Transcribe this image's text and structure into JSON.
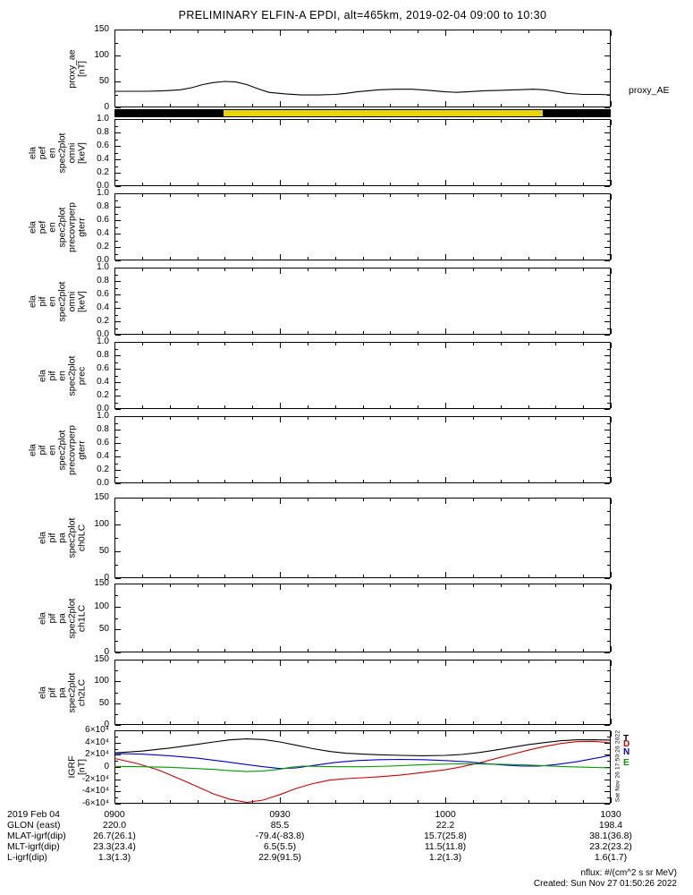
{
  "title": "PRELIMINARY ELFIN-A EPDI, alt=465km, 2019-02-04 09:00 to 10:30",
  "right_label": "proxy_AE",
  "side_timestamp": "Sat Nov 26 17:50:26 2022",
  "footer": {
    "rows": [
      {
        "label": "2019 Feb 04",
        "values": [
          "0900",
          "0930",
          "1000",
          "1030"
        ]
      },
      {
        "label": "GLON (east)",
        "values": [
          "220.0",
          "85.5",
          "22.2",
          "198.4"
        ]
      },
      {
        "label": "MLAT-igrf(dip)",
        "values": [
          "26.7(26.1)",
          "-79.4(-83.8)",
          "15.7(25.8)",
          "38.1(36.8)"
        ]
      },
      {
        "label": "MLT-igrf(dip)",
        "values": [
          "23.3(23.4)",
          "6.5(5.5)",
          "11.5(11.8)",
          "23.2(23.2)"
        ]
      },
      {
        "label": "L-igrf(dip)",
        "values": [
          "1.3(1.3)",
          "22.9(91.5)",
          "1.2(1.3)",
          "1.6(1.7)"
        ]
      }
    ],
    "note_line1": "nflux: #/(cm^2 s sr MeV)",
    "note_line2": "Created: Sun Nov 27 01:50:26 2022"
  },
  "xaxis": {
    "range": [
      0,
      90
    ],
    "major": [
      0,
      30,
      60,
      90
    ],
    "minor_step": 5,
    "labels": [
      "0900",
      "0930",
      "1000",
      "1030"
    ]
  },
  "orbit_bar": {
    "name": "science-zone-bar",
    "segments": [
      {
        "color": "#000000",
        "start": 0.0,
        "end": 0.22
      },
      {
        "color": "#e9d506",
        "start": 0.22,
        "end": 0.863
      },
      {
        "color": "#000000",
        "start": 0.863,
        "end": 1.0
      }
    ]
  },
  "chart_data": [
    {
      "type": "line",
      "name": "proxy-ae-panel",
      "ylabel_lines": [
        "proxy_ae",
        "[nT]"
      ],
      "ylim": [
        0,
        150
      ],
      "yticks": [
        {
          "v": 0,
          "t": "0"
        },
        {
          "v": 50,
          "t": "50"
        },
        {
          "v": 100,
          "t": "100"
        },
        {
          "v": 150,
          "t": "150"
        }
      ],
      "series": [
        {
          "name": "proxy_AE",
          "color": "#000000",
          "x": [
            0,
            3,
            6,
            9,
            12,
            14,
            16,
            18,
            20,
            22,
            24,
            26,
            28,
            31,
            34,
            37,
            40,
            42,
            44,
            46,
            48,
            51,
            54,
            57,
            60,
            62,
            64,
            67,
            70,
            73,
            76,
            78,
            80,
            82,
            85,
            88,
            90
          ],
          "y": [
            31,
            31,
            31,
            32,
            34,
            38,
            44,
            48,
            50,
            49,
            44,
            36,
            29,
            26,
            24,
            24,
            25,
            27,
            30,
            32,
            34,
            35,
            35,
            33,
            30,
            29,
            30,
            32,
            33,
            34,
            35,
            34,
            31,
            27,
            25,
            25,
            24
          ]
        }
      ]
    },
    {
      "type": "spectrogram",
      "name": "ela-pef-en-omni-panel",
      "ylabel_lines": [
        "ela",
        "pef",
        "en",
        "spec2plot",
        "omni",
        "[keV]"
      ],
      "ylim": [
        0,
        1
      ],
      "yticks": [
        {
          "v": 0,
          "t": "0.0"
        },
        {
          "v": 0.2,
          "t": "0.2"
        },
        {
          "v": 0.4,
          "t": "0.4"
        },
        {
          "v": 0.6,
          "t": "0.6"
        },
        {
          "v": 0.8,
          "t": "0.8"
        },
        {
          "v": 1,
          "t": "1.0"
        }
      ],
      "series": []
    },
    {
      "type": "spectrogram",
      "name": "ela-pef-en-precovrperp-gterr-panel",
      "ylabel_lines": [
        "ela",
        "pef",
        "en",
        "spec2plot",
        "precovrperp",
        "gterr"
      ],
      "ylim": [
        0,
        1
      ],
      "yticks": [
        {
          "v": 0,
          "t": "0.0"
        },
        {
          "v": 0.2,
          "t": "0.2"
        },
        {
          "v": 0.4,
          "t": "0.4"
        },
        {
          "v": 0.6,
          "t": "0.6"
        },
        {
          "v": 0.8,
          "t": "0.8"
        },
        {
          "v": 1,
          "t": "1.0"
        }
      ],
      "series": []
    },
    {
      "type": "spectrogram",
      "name": "ela-pif-en-omni-panel",
      "ylabel_lines": [
        "ela",
        "pif",
        "en",
        "spec2plot",
        "omni",
        "[keV]"
      ],
      "ylim": [
        0,
        1
      ],
      "yticks": [
        {
          "v": 0,
          "t": "0.0"
        },
        {
          "v": 0.2,
          "t": "0.2"
        },
        {
          "v": 0.4,
          "t": "0.4"
        },
        {
          "v": 0.6,
          "t": "0.6"
        },
        {
          "v": 0.8,
          "t": "0.8"
        },
        {
          "v": 1,
          "t": "1.0"
        }
      ],
      "series": []
    },
    {
      "type": "spectrogram",
      "name": "ela-pif-en-prec-panel",
      "ylabel_lines": [
        "ela",
        "pif",
        "en",
        "spec2plot",
        "prec"
      ],
      "ylim": [
        0,
        1
      ],
      "yticks": [
        {
          "v": 0,
          "t": "0.0"
        },
        {
          "v": 0.2,
          "t": "0.2"
        },
        {
          "v": 0.4,
          "t": "0.4"
        },
        {
          "v": 0.6,
          "t": "0.6"
        },
        {
          "v": 0.8,
          "t": "0.8"
        },
        {
          "v": 1,
          "t": "1.0"
        }
      ],
      "series": []
    },
    {
      "type": "spectrogram",
      "name": "ela-pif-en-precovrperp-gterr-panel",
      "ylabel_lines": [
        "ela",
        "pif",
        "en",
        "spec2plot",
        "precovrperp",
        "gterr"
      ],
      "ylim": [
        0,
        1
      ],
      "yticks": [
        {
          "v": 0,
          "t": "0.0"
        },
        {
          "v": 0.2,
          "t": "0.2"
        },
        {
          "v": 0.4,
          "t": "0.4"
        },
        {
          "v": 0.6,
          "t": "0.6"
        },
        {
          "v": 0.8,
          "t": "0.8"
        },
        {
          "v": 1,
          "t": "1.0"
        }
      ],
      "series": []
    },
    {
      "type": "spectrogram",
      "name": "ela-pif-pa-ch0lc-panel",
      "ylabel_lines": [
        "ela",
        "pif",
        "pa",
        "spec2plot",
        "ch0LC"
      ],
      "ylim": [
        0,
        150
      ],
      "yticks": [
        {
          "v": 0,
          "t": "0"
        },
        {
          "v": 50,
          "t": "50"
        },
        {
          "v": 100,
          "t": "100"
        },
        {
          "v": 150,
          "t": "150"
        }
      ],
      "series": []
    },
    {
      "type": "spectrogram",
      "name": "ela-pif-pa-ch1lc-panel",
      "ylabel_lines": [
        "ela",
        "pif",
        "pa",
        "spec2plot",
        "ch1LC"
      ],
      "ylim": [
        0,
        150
      ],
      "yticks": [
        {
          "v": 0,
          "t": "0"
        },
        {
          "v": 50,
          "t": "50"
        },
        {
          "v": 100,
          "t": "100"
        },
        {
          "v": 150,
          "t": "150"
        }
      ],
      "series": []
    },
    {
      "type": "spectrogram",
      "name": "ela-pif-pa-ch2lc-panel",
      "ylabel_lines": [
        "ela",
        "pif",
        "pa",
        "spec2plot",
        "ch2LC"
      ],
      "ylim": [
        0,
        150
      ],
      "yticks": [
        {
          "v": 0,
          "t": "0"
        },
        {
          "v": 50,
          "t": "50"
        },
        {
          "v": 100,
          "t": "100"
        },
        {
          "v": 150,
          "t": "150"
        }
      ],
      "series": []
    },
    {
      "type": "line",
      "name": "igrf-panel",
      "ylabel_lines": [
        "IGRF",
        "[nT]"
      ],
      "ylim": [
        -60000,
        60000
      ],
      "yticks": [
        {
          "v": -60000,
          "t": "-6×10⁴"
        },
        {
          "v": -40000,
          "t": "-4×10⁴"
        },
        {
          "v": -20000,
          "t": "-2×10⁴"
        },
        {
          "v": 0,
          "t": "0"
        },
        {
          "v": 20000,
          "t": "2×10⁴"
        },
        {
          "v": 40000,
          "t": "4×10⁴"
        },
        {
          "v": 60000,
          "t": "6×10⁴"
        }
      ],
      "legend": [
        {
          "label": "T",
          "color": "#000000",
          "v": 46000
        },
        {
          "label": "D",
          "color": "#cc0000",
          "v": 36000
        },
        {
          "label": "N",
          "color": "#0000cc",
          "v": 24000
        },
        {
          "label": "E",
          "color": "#009900",
          "v": 6000
        }
      ],
      "series": [
        {
          "name": "T",
          "color": "#000000",
          "x": [
            0,
            5,
            10,
            15,
            18,
            21,
            24,
            27,
            30,
            33,
            36,
            39,
            42,
            45,
            48,
            52,
            56,
            60,
            63,
            66,
            69,
            72,
            75,
            78,
            81,
            84,
            87,
            90
          ],
          "y": [
            23000,
            26000,
            31000,
            37000,
            41000,
            44500,
            46000,
            45000,
            41000,
            35500,
            30000,
            25500,
            22500,
            21000,
            20000,
            19000,
            18500,
            19000,
            20500,
            23500,
            27500,
            32000,
            36500,
            40000,
            43000,
            44500,
            44500,
            44000
          ]
        },
        {
          "name": "D",
          "color": "#cc0000",
          "x": [
            0,
            4,
            8,
            12,
            15,
            18,
            21,
            24,
            27,
            30,
            33,
            36,
            39,
            42,
            45,
            48,
            52,
            56,
            60,
            63,
            66,
            69,
            72,
            75,
            78,
            81,
            84,
            87,
            90
          ],
          "y": [
            14000,
            6000,
            -5000,
            -20000,
            -32000,
            -44000,
            -53000,
            -58000,
            -54000,
            -45000,
            -35000,
            -27000,
            -21500,
            -19000,
            -17500,
            -16000,
            -13000,
            -9000,
            -4500,
            500,
            6500,
            13500,
            20500,
            27500,
            33500,
            38500,
            41500,
            42000,
            39500
          ]
        },
        {
          "name": "N",
          "color": "#0000cc",
          "x": [
            0,
            5,
            10,
            15,
            20,
            24,
            27,
            30,
            33,
            36,
            40,
            44,
            48,
            52,
            56,
            60,
            64,
            68,
            71,
            74,
            77,
            80,
            84,
            87,
            90
          ],
          "y": [
            22000,
            21000,
            18500,
            14500,
            9000,
            4000,
            500,
            -2500,
            -1500,
            2500,
            7500,
            10500,
            12000,
            12500,
            12000,
            10500,
            8500,
            5000,
            3000,
            1500,
            1500,
            4000,
            9000,
            14000,
            19000
          ]
        },
        {
          "name": "E",
          "color": "#009900",
          "x": [
            0,
            5,
            10,
            14,
            18,
            21,
            24,
            27,
            30,
            32,
            34,
            37,
            40,
            45,
            50,
            54,
            58,
            62,
            66,
            70,
            74,
            78,
            82,
            86,
            90
          ],
          "y": [
            1000,
            500,
            -500,
            -2000,
            -4000,
            -6000,
            -7500,
            -6500,
            -3500,
            -500,
            1500,
            1000,
            500,
            500,
            1500,
            3000,
            4500,
            5000,
            5000,
            4500,
            3500,
            2000,
            500,
            -500,
            -1500
          ]
        }
      ]
    }
  ]
}
